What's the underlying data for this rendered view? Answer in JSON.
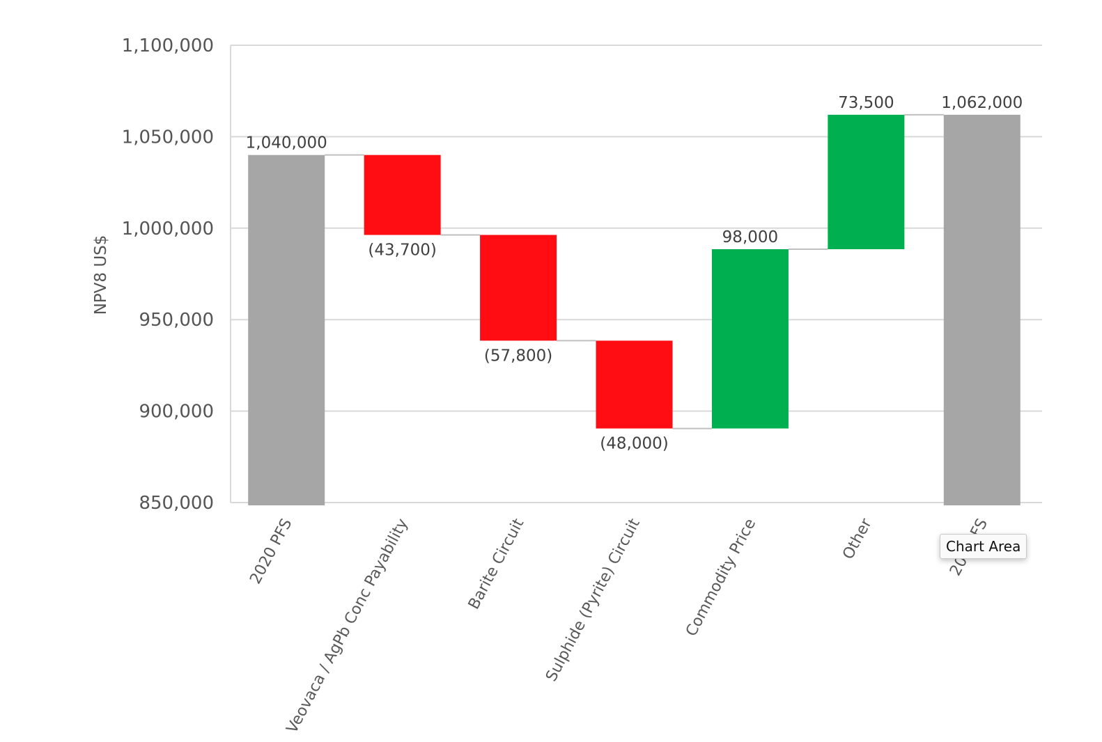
{
  "chart_data": {
    "type": "bar",
    "subtype": "waterfall",
    "title": "",
    "xlabel": "",
    "ylabel": "NPV8 US$",
    "ylim": [
      850000,
      1100000
    ],
    "yticks": [
      850000,
      900000,
      950000,
      1000000,
      1050000,
      1100000
    ],
    "ytick_labels": [
      "850,000",
      "900,000",
      "950,000",
      "1,000,000",
      "1,050,000",
      "1,100,000"
    ],
    "grid": true,
    "legend": "none",
    "categories": [
      "2020 PFS",
      "Veovaca / AgPb Conc Payability",
      "Barite Circuit",
      "Sulphide (Pyrite) Circuit",
      "Commodity Price",
      "Other",
      "2022 FS"
    ],
    "values": [
      1040000,
      -43700,
      -57800,
      -48000,
      98000,
      73500,
      1062000
    ],
    "kinds": [
      "total",
      "decrease",
      "decrease",
      "decrease",
      "increase",
      "increase",
      "total"
    ],
    "data_labels": [
      "1,040,000",
      "(43,700)",
      "(57,800)",
      "(48,000)",
      "98,000",
      "73,500",
      "1,062,000"
    ],
    "colors": {
      "total": "#a6a6a6",
      "decrease": "#ff0d12",
      "increase": "#00b050",
      "grid": "#d9d9d9",
      "connector": "#bfbfbf"
    }
  },
  "tooltip": {
    "text": "Chart Area"
  }
}
